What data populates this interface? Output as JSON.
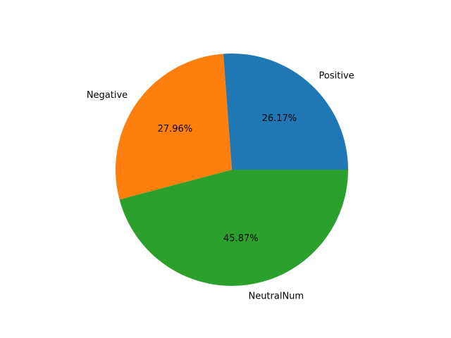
{
  "chart_data": {
    "type": "pie",
    "title": "",
    "categories": [
      "Positive",
      "Negative",
      "NeutralNum"
    ],
    "values": [
      26.17,
      27.96,
      45.87
    ],
    "value_labels": [
      "26.17%",
      "27.96%",
      "45.87%"
    ],
    "colors": [
      "#1f77b4",
      "#ff7f0e",
      "#2ca02c"
    ],
    "start_angle_deg": 0,
    "direction": "counterclockwise",
    "legend": "none"
  }
}
